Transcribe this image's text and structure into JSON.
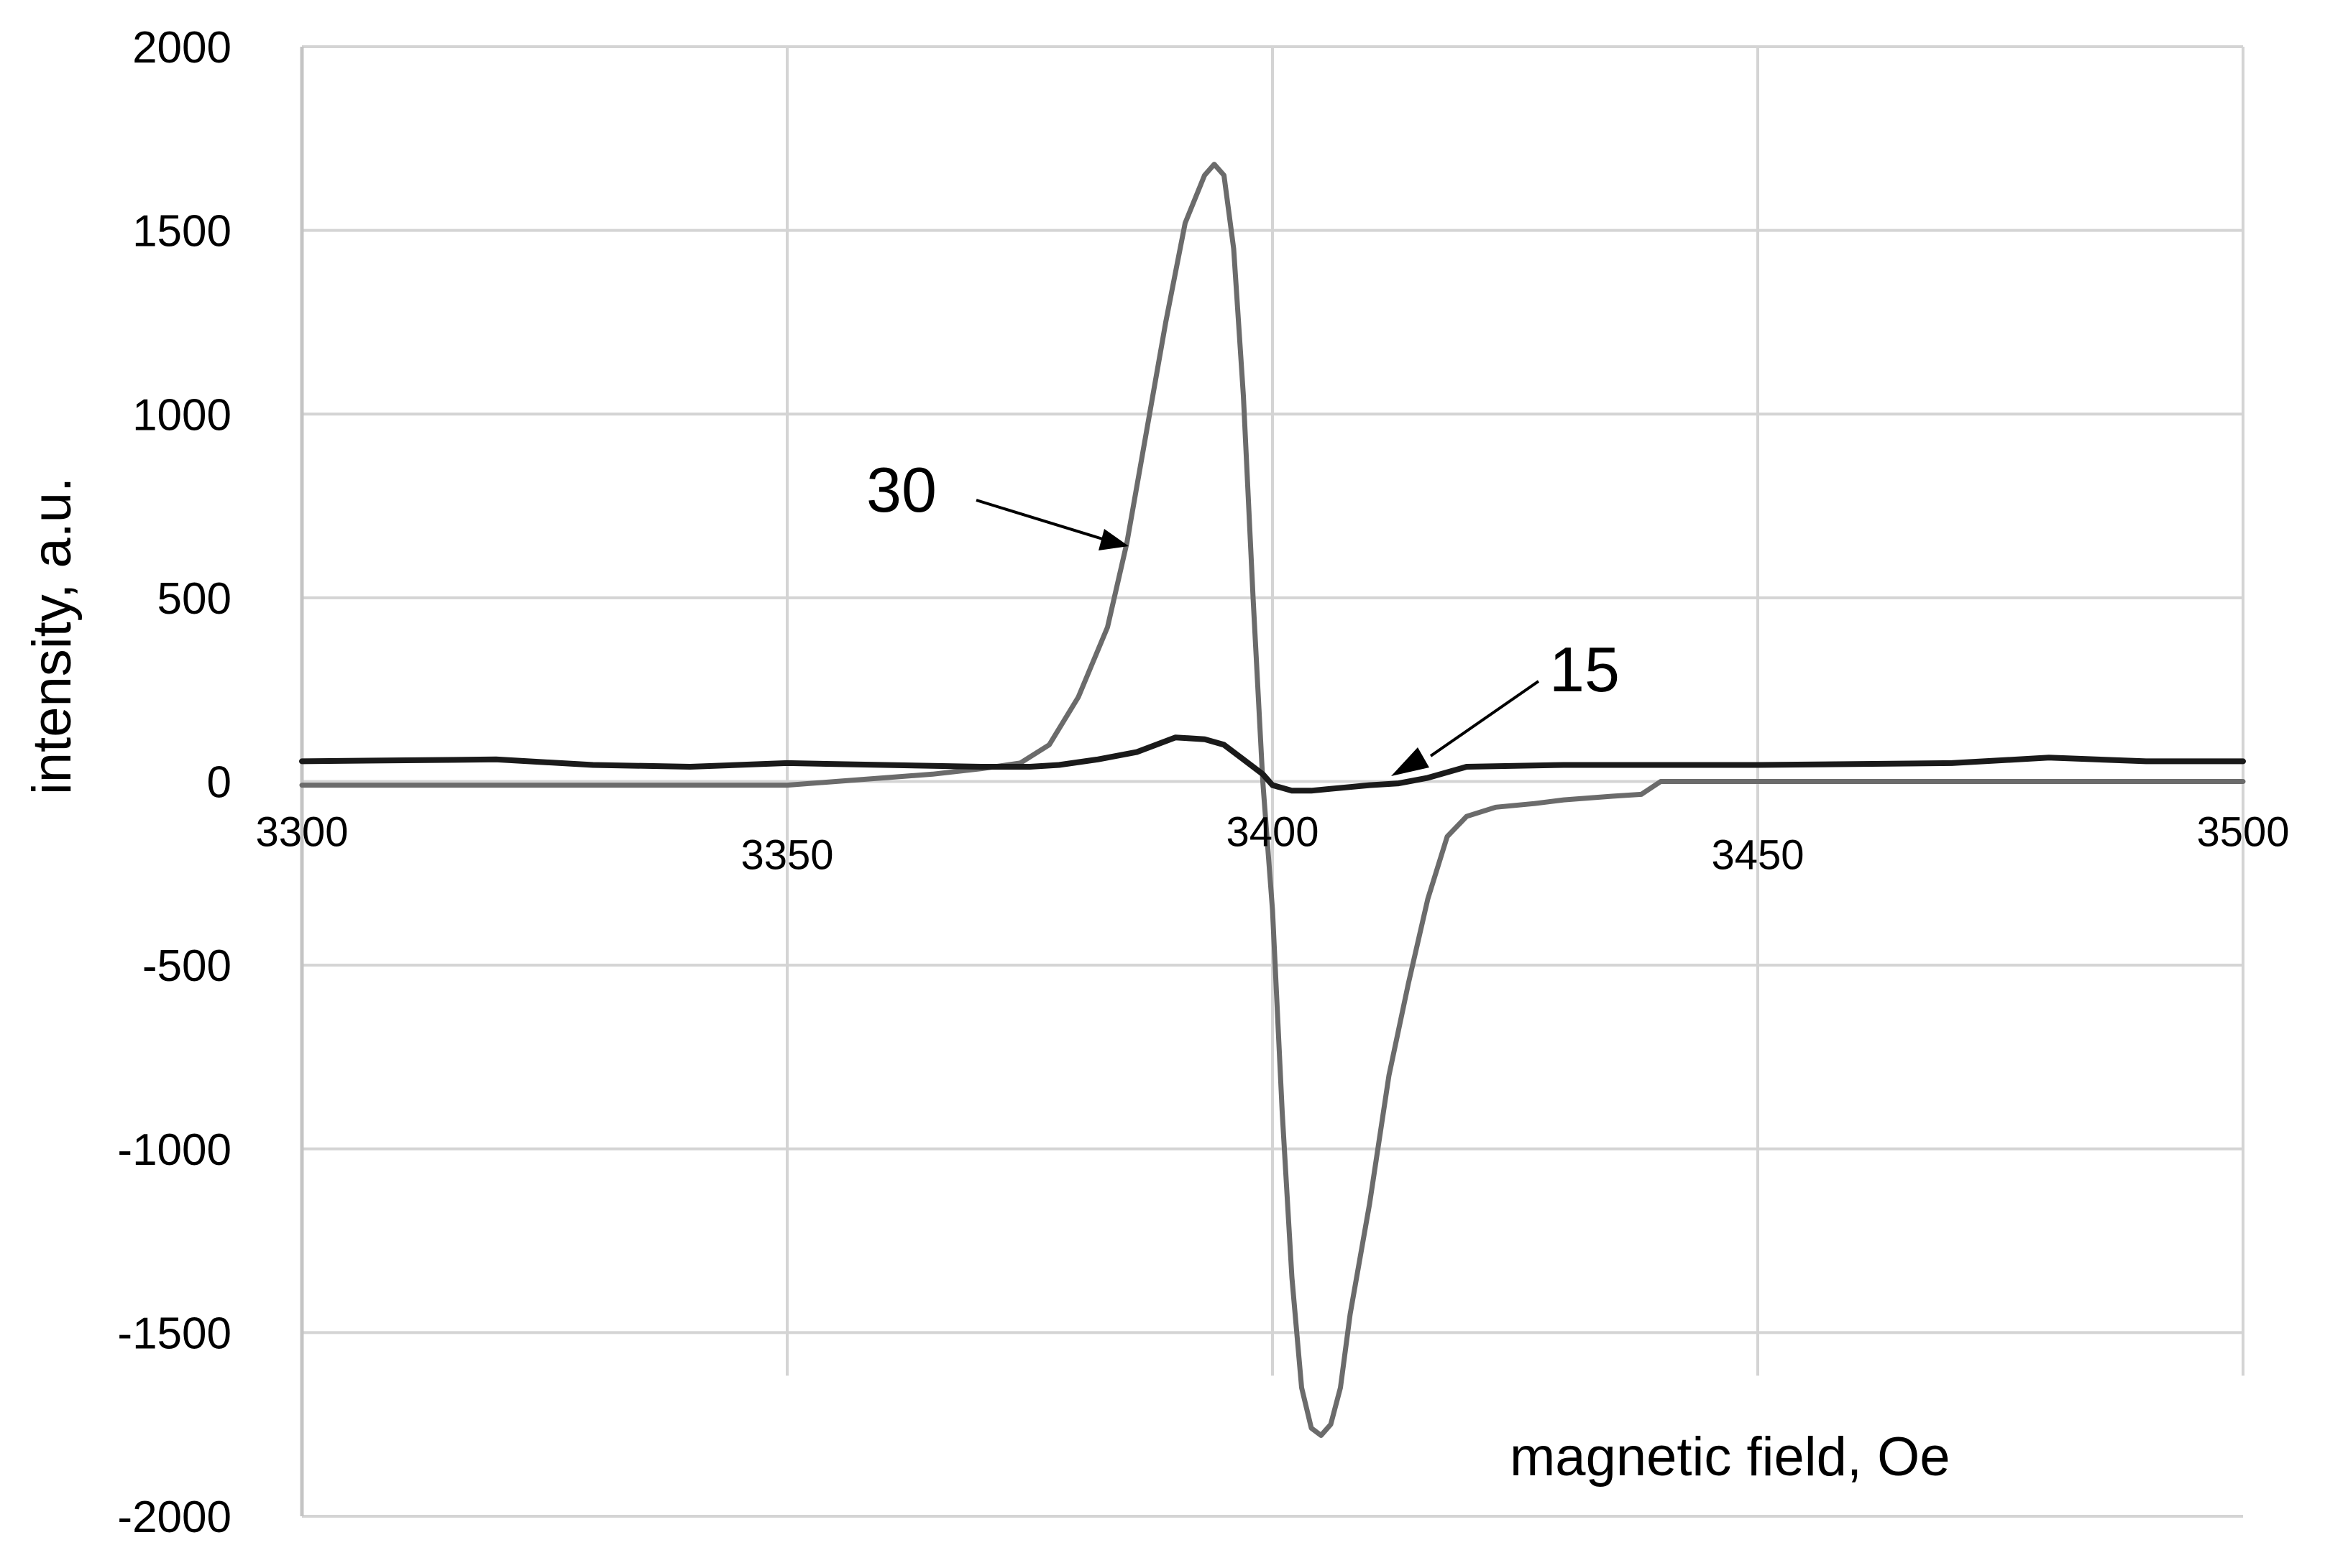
{
  "chart_data": {
    "type": "line",
    "title": "",
    "xlabel": "magnetic field, Oe",
    "ylabel": "intensity, a.u.",
    "xlim": [
      3300,
      3500
    ],
    "ylim": [
      -2000,
      2000
    ],
    "x_ticks": [
      3300,
      3350,
      3400,
      3450,
      3500
    ],
    "y_ticks": [
      2000,
      1500,
      1000,
      500,
      0,
      -500,
      -1000,
      -1500,
      -2000
    ],
    "x_tick_labels": [
      "3300",
      "3350",
      "3400",
      "3450",
      "3500"
    ],
    "y_tick_labels": [
      "2000",
      "1500",
      "1000",
      "500",
      "0",
      "-500",
      "-1000",
      "-1500",
      "-2000"
    ],
    "grid": true,
    "series": [
      {
        "name": "30",
        "color": "#6b6b6b",
        "x": [
          3300,
          3320,
          3340,
          3350,
          3355,
          3360,
          3365,
          3370,
          3374,
          3377,
          3380,
          3383,
          3385,
          3387,
          3389,
          3391,
          3393,
          3394,
          3395,
          3396,
          3397,
          3398,
          3399,
          3400,
          3401,
          3402,
          3403,
          3404,
          3405,
          3406,
          3407,
          3408,
          3410,
          3412,
          3414,
          3416,
          3418,
          3420,
          3423,
          3427,
          3430,
          3435,
          3438,
          3440,
          3450,
          3470,
          3500
        ],
        "y": [
          -10,
          -10,
          -10,
          -10,
          0,
          10,
          20,
          35,
          50,
          100,
          230,
          420,
          650,
          950,
          1250,
          1520,
          1650,
          1680,
          1650,
          1450,
          1050,
          500,
          0,
          -350,
          -900,
          -1350,
          -1650,
          -1760,
          -1780,
          -1750,
          -1650,
          -1450,
          -1150,
          -800,
          -550,
          -320,
          -150,
          -95,
          -70,
          -60,
          -50,
          -40,
          -35,
          0,
          0,
          0,
          0
        ]
      },
      {
        "name": "15",
        "color": "#1a1a1a",
        "x": [
          3300,
          3320,
          3330,
          3340,
          3350,
          3360,
          3370,
          3375,
          3378,
          3382,
          3386,
          3390,
          3393,
          3395,
          3397,
          3399,
          3400,
          3402,
          3404,
          3406,
          3408,
          3410,
          3413,
          3416,
          3420,
          3430,
          3450,
          3470,
          3480,
          3490,
          3500
        ],
        "y": [
          55,
          60,
          45,
          40,
          50,
          45,
          40,
          40,
          45,
          60,
          80,
          120,
          115,
          100,
          60,
          20,
          -10,
          -25,
          -25,
          -20,
          -15,
          -10,
          -5,
          10,
          40,
          45,
          45,
          50,
          65,
          55,
          55
        ]
      }
    ],
    "annotations": [
      {
        "text": "30",
        "series": "30"
      },
      {
        "text": "15",
        "series": "15"
      }
    ]
  }
}
